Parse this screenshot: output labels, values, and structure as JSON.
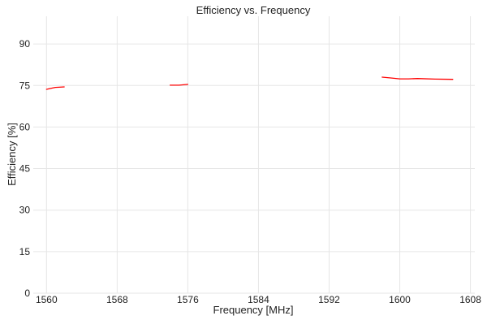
{
  "chart_data": {
    "type": "line",
    "title": "Efficiency vs. Frequency",
    "xlabel": "Frequency [MHz]",
    "ylabel": "Efficiency [%]",
    "xlim": [
      1558.5,
      1608.5
    ],
    "ylim": [
      0,
      100
    ],
    "xticks": [
      1560,
      1568,
      1576,
      1584,
      1592,
      1600,
      1608
    ],
    "yticks": [
      0,
      15,
      30,
      45,
      60,
      75,
      90
    ],
    "grid": true,
    "line_color": "#ff0000",
    "grid_color": "#e6e6e6",
    "series": [
      {
        "segments": [
          [
            [
              1560.0,
              73.6
            ],
            [
              1560.5,
              74.0
            ],
            [
              1561.0,
              74.3
            ],
            [
              1562.0,
              74.5
            ]
          ],
          [
            [
              1574.0,
              75.1
            ],
            [
              1575.0,
              75.1
            ],
            [
              1576.0,
              75.4
            ]
          ],
          [
            [
              1598.0,
              78.0
            ],
            [
              1599.0,
              77.7
            ],
            [
              1600.0,
              77.4
            ],
            [
              1601.0,
              77.4
            ],
            [
              1602.0,
              77.5
            ],
            [
              1604.0,
              77.3
            ],
            [
              1606.0,
              77.2
            ]
          ]
        ]
      }
    ]
  }
}
